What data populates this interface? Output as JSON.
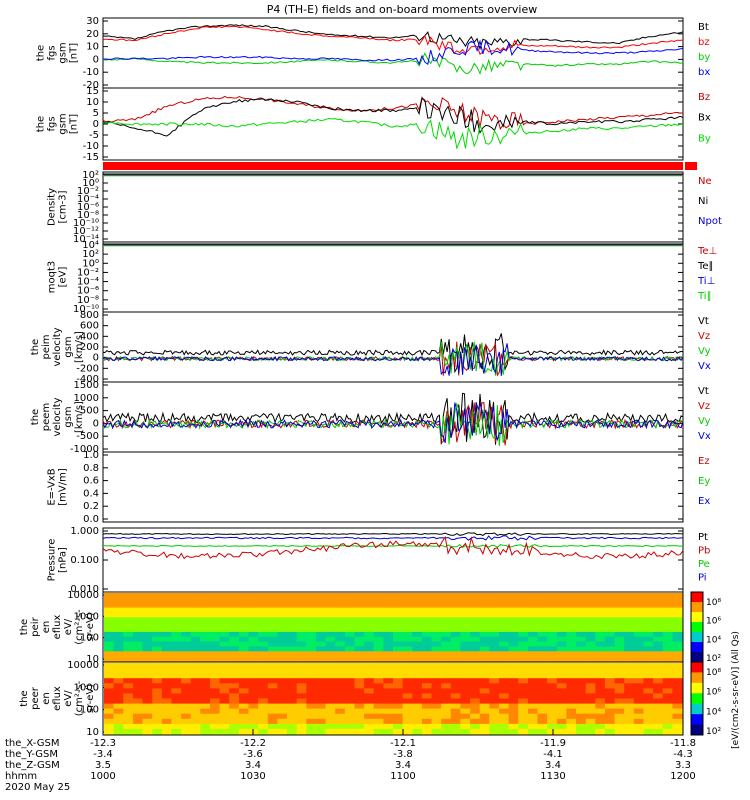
{
  "title": "P4 (TH-E) fields and on-board moments overview",
  "chart_data": [
    {
      "id": "fgs_gsm_panel",
      "type": "line",
      "ylabel": [
        "the",
        "fgs",
        "gsm",
        "[nT]"
      ],
      "yticks": [
        "30",
        "20",
        "10",
        "0",
        "-10",
        "-20"
      ],
      "ylim": [
        -20,
        30
      ],
      "legend": [
        "Bt",
        "bz",
        "by",
        "bx"
      ],
      "series": [
        {
          "name": "Bt",
          "color": "#000000",
          "values": [
            17,
            15,
            21,
            24,
            25,
            24,
            21,
            18,
            17,
            16,
            18,
            13,
            12,
            15,
            14,
            13,
            12,
            17,
            20
          ]
        },
        {
          "name": "bz",
          "color": "#ff0000",
          "values": [
            15,
            14,
            19,
            23,
            24,
            22,
            19,
            17,
            16,
            14,
            15,
            8,
            9,
            10,
            10,
            9,
            9,
            12,
            14
          ]
        },
        {
          "name": "by",
          "color": "#00cc00",
          "values": [
            0,
            1,
            -1,
            -2,
            -2,
            -2,
            -1,
            0,
            -1,
            -2,
            0,
            -6,
            -4,
            -3,
            -4,
            -3,
            -3,
            -1,
            -2
          ]
        },
        {
          "name": "bx",
          "color": "#0000ff",
          "values": [
            1,
            1,
            1,
            2,
            2,
            2,
            1,
            1,
            0,
            0,
            1,
            8,
            9,
            7,
            6,
            5,
            5,
            6,
            8
          ]
        }
      ]
    },
    {
      "id": "fgs_gsm_panel_2",
      "type": "line",
      "ylabel": [
        "the",
        "fgs",
        "gsm",
        "[nT]"
      ],
      "yticks": [
        "15",
        "10",
        "5",
        "0",
        "-5",
        "-10",
        "-15"
      ],
      "ylim": [
        -17,
        15
      ],
      "legend": [
        "Bz",
        "Bx",
        "By"
      ],
      "series": [
        {
          "name": "Bz",
          "color": "#cc0000",
          "values": [
            0,
            1,
            7,
            10,
            11,
            10,
            8,
            6,
            5,
            6,
            8,
            4,
            1,
            -1,
            0,
            1,
            2,
            3,
            4
          ]
        },
        {
          "name": "Bx",
          "color": "#000000",
          "values": [
            0,
            -3,
            -6,
            5,
            9,
            10,
            9,
            6,
            5,
            5,
            6,
            2,
            -1,
            0,
            -1,
            0,
            0,
            1,
            2
          ]
        },
        {
          "name": "By",
          "color": "#00dd00",
          "values": [
            0,
            -1,
            -1,
            -1,
            -2,
            -1,
            0,
            1,
            0,
            -2,
            -1,
            -8,
            -6,
            -5,
            -4,
            -3,
            -3,
            -2,
            -1
          ]
        }
      ]
    },
    {
      "id": "density_panel",
      "type": "line",
      "ylabel": [
        "Density",
        "[cm-3]"
      ],
      "yticks": [
        "10²",
        "10⁰",
        "10⁻²",
        "10⁻⁴",
        "10⁻⁶",
        "10⁻⁸",
        "10⁻¹⁰",
        "10⁻¹²",
        "10⁻¹⁴"
      ],
      "ylim": [
        -14,
        2
      ],
      "log": true,
      "legend": [
        "Ne",
        "Ni",
        "Npot"
      ]
    },
    {
      "id": "temperature_panel",
      "type": "line",
      "ylabel": [
        "moqt3",
        "[eV]"
      ],
      "yticks": [
        "10⁴",
        "10²",
        "10⁰",
        "10⁻²",
        "10⁻⁴",
        "10⁻⁶",
        "10⁻⁸",
        "10⁻¹⁰"
      ],
      "ylim": [
        -10,
        4
      ],
      "log": true,
      "legend": [
        "Te⊥",
        "Te∥",
        "Ti⊥",
        "Ti∥"
      ]
    },
    {
      "id": "peim_velocity_panel",
      "type": "line",
      "ylabel": [
        "the",
        "peim",
        "velocity",
        "gsm",
        "[km/s]"
      ],
      "yticks": [
        "800",
        "600",
        "400",
        "200",
        "0",
        "-200",
        "-400"
      ],
      "ylim": [
        -400,
        800
      ],
      "legend": [
        "Vt",
        "Vz",
        "Vy",
        "Vx"
      ]
    },
    {
      "id": "peem_velocity_panel",
      "type": "line",
      "ylabel": [
        "the",
        "peem",
        "velocity",
        "gsm",
        "[km/s]"
      ],
      "yticks": [
        "1500",
        "1000",
        "500",
        "0",
        "-500",
        "-1000"
      ],
      "ylim": [
        -1000,
        1500
      ],
      "legend": [
        "Vt",
        "Vz",
        "Vy",
        "Vx"
      ]
    },
    {
      "id": "efield_panel",
      "type": "line",
      "ylabel": [
        "E=-VxB",
        "[mV/m]"
      ],
      "yticks": [
        "1.0",
        "0.8",
        "0.6",
        "0.4",
        "0.2",
        "0.0"
      ],
      "ylim": [
        0,
        1
      ],
      "legend": [
        "Ez",
        "Ey",
        "Ex"
      ]
    },
    {
      "id": "pressure_panel",
      "type": "line",
      "ylabel": [
        "Pressure",
        "[nPa]"
      ],
      "yticks": [
        "1.000",
        "0.100",
        "0.010"
      ],
      "ylim": [
        -2.3,
        0
      ],
      "log": true,
      "legend": [
        "Pt",
        "Pb",
        "Pe",
        "Pi"
      ]
    },
    {
      "id": "peir_spectrogram",
      "type": "heatmap",
      "ylabel": [
        "the",
        "peir",
        "en",
        "eflux",
        "eV/",
        "(cm²-s-",
        "sr-eV)"
      ],
      "yticks": [
        "10000",
        "1000",
        "100",
        "10"
      ],
      "colorbar_ticks": [
        "10⁸",
        "10⁶",
        "10⁴",
        "10²"
      ]
    },
    {
      "id": "peer_spectrogram",
      "type": "heatmap",
      "ylabel": [
        "the",
        "peer",
        "en",
        "eflux",
        "eV/",
        "(cm²-s-",
        "sr-eV)"
      ],
      "yticks": [
        "10000",
        "1000",
        "100",
        "10"
      ],
      "colorbar_ticks": [
        "10⁸",
        "10⁶",
        "10⁴",
        "10²"
      ],
      "colorbar_label": "[eV/(cm2-s-sr-eV)]  (All Qs)"
    }
  ],
  "xaxis": {
    "row_labels": [
      "the_X-GSM",
      "the_Y-GSM",
      "the_Z-GSM",
      "hhmm"
    ],
    "ticks": [
      {
        "x": "-12.3",
        "y": "-3.4",
        "z": "3.5",
        "t": "1000"
      },
      {
        "x": "-12.2",
        "y": "-3.6",
        "z": "3.4",
        "t": "1030"
      },
      {
        "x": "-12.1",
        "y": "-3.8",
        "z": "3.4",
        "t": "1100"
      },
      {
        "x": "-11.9",
        "y": "-4.1",
        "z": "3.4",
        "t": "1130"
      },
      {
        "x": "-11.8",
        "y": "-4.3",
        "z": "3.3",
        "t": "1200"
      }
    ],
    "date": "2020 May 25"
  },
  "colors": {
    "Ne": "#cc0000",
    "Ni": "#000000",
    "Npot": "#0000cc",
    "Te_perp": "#cc0000",
    "Te_par": "#000000",
    "Ti_perp": "#0000cc",
    "Ti_par": "#00cc00",
    "Vt": "#000000",
    "Vz": "#cc0000",
    "Vy": "#00cc00",
    "Vx": "#0000cc",
    "Ez": "#cc0000",
    "Ey": "#00cc00",
    "Ex": "#0000cc",
    "Pt": "#000000",
    "Pb": "#cc0000",
    "Pe": "#00cc00",
    "Pi": "#0000cc"
  }
}
